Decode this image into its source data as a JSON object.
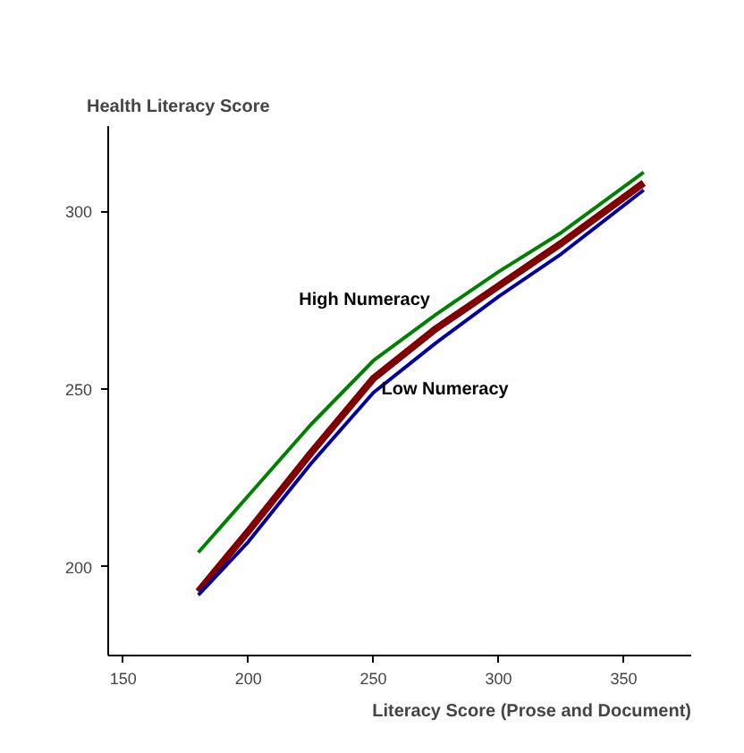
{
  "chart_data": {
    "type": "line",
    "ylabel": "Health Literacy Score",
    "xlabel": "Literacy Score (Prose and Document)",
    "x": [
      180,
      200,
      225,
      250,
      275,
      300,
      325,
      358
    ],
    "series": [
      {
        "name": "High Numeracy",
        "color": "#008000",
        "values": [
          204,
          220,
          240,
          258,
          271,
          283,
          294,
          311
        ]
      },
      {
        "color": "#800000",
        "values": [
          193,
          210,
          232,
          253,
          267,
          279,
          291,
          308
        ]
      },
      {
        "name": "Low Numeracy",
        "color": "#0000a0",
        "values": [
          192,
          207,
          229,
          249,
          263,
          276,
          288,
          306
        ]
      }
    ],
    "xlim": [
      144,
      377
    ],
    "ylim": [
      175,
      324
    ],
    "xticks": [
      150,
      200,
      250,
      300,
      350
    ],
    "yticks": [
      200,
      250,
      300
    ],
    "grid": false,
    "marker": "none",
    "line_style": "solid"
  }
}
